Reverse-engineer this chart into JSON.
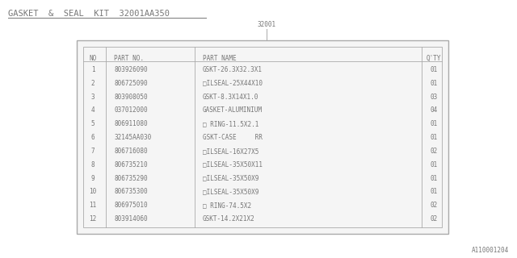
{
  "title": "GASKET  &  SEAL  KIT  32001AA350",
  "ref_label": "32001",
  "watermark": "A110001204",
  "bg_color": "#ffffff",
  "text_color": "#777777",
  "border_color": "#aaaaaa",
  "headers": [
    "NO",
    "PART NO.",
    "PART NAME",
    "Q'TY"
  ],
  "rows": [
    [
      "1",
      "803926090",
      "GSKT-26.3X32.3X1",
      "01"
    ],
    [
      "2",
      "806725090",
      "□ILSEAL-25X44X10",
      "01"
    ],
    [
      "3",
      "803908050",
      "GSKT-8.3X14X1.0",
      "03"
    ],
    [
      "4",
      "037012000",
      "GASKET-ALUMINIUM",
      "04"
    ],
    [
      "5",
      "806911080",
      "□ RING-11.5X2.1",
      "01"
    ],
    [
      "6",
      "32145AA030",
      "GSKT-CASE     RR",
      "01"
    ],
    [
      "7",
      "806716080",
      "□ILSEAL-16X27X5",
      "02"
    ],
    [
      "8",
      "806735210",
      "□ILSEAL-35X50X11",
      "01"
    ],
    [
      "9",
      "806735290",
      "□ILSEAL-35X50X9",
      "01"
    ],
    [
      "10",
      "806735300",
      "□ILSEAL-35X50X9",
      "01"
    ],
    [
      "11",
      "806975010",
      "□ RING-74.5X2",
      "02"
    ],
    [
      "12",
      "803914060",
      "GSKT-14.2X21X2",
      "02"
    ]
  ],
  "font_size": 5.5,
  "title_font_size": 7.5,
  "ref_font_size": 5.5,
  "watermark_font_size": 5.5
}
